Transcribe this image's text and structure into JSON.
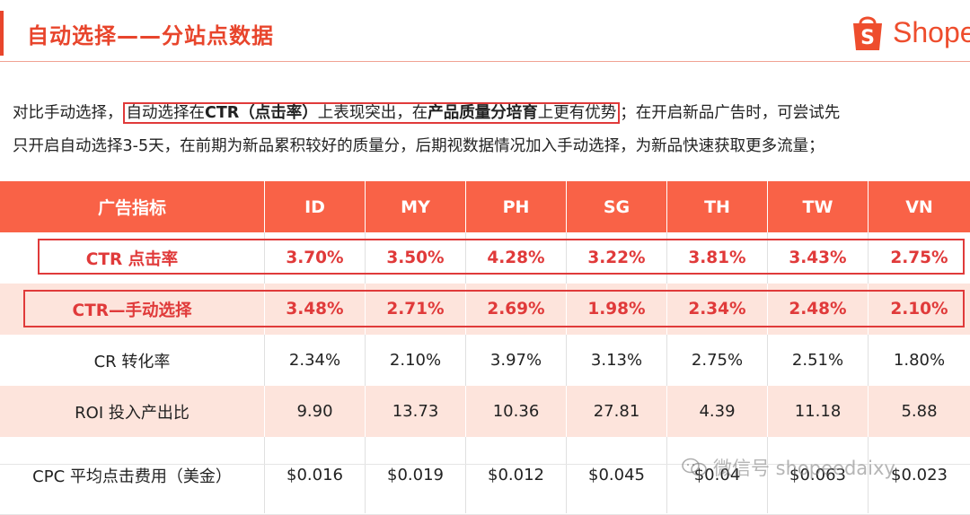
{
  "header": {
    "title": "自动选择——分站点数据",
    "logo_text": "Shope",
    "brand_color": "#ee4d2d"
  },
  "intro": {
    "line1_pre": "对比手动选择，",
    "box_a": "自动选择在",
    "box_b": "CTR（点击率）",
    "box_c": "上表现突出，在",
    "box_d": "产品质量分培育",
    "box_e": "上更有优势",
    "line1_post": "；在开启新品广告时，可尝试先",
    "line2": "只开启自动选择3-5天，在前期为新品累积较好的质量分，后期视数据情况加入手动选择，为新品快速获取更多流量；"
  },
  "table": {
    "header": [
      "广告指标",
      "ID",
      "MY",
      "PH",
      "SG",
      "TH",
      "TW",
      "VN"
    ],
    "rows": [
      [
        "CTR 点击率",
        "3.70%",
        "3.50%",
        "4.28%",
        "3.22%",
        "3.81%",
        "3.43%",
        "2.75%"
      ],
      [
        "CTR—手动选择",
        "3.48%",
        "2.71%",
        "2.69%",
        "1.98%",
        "2.34%",
        "2.48%",
        "2.10%"
      ],
      [
        "CR 转化率",
        "2.34%",
        "2.10%",
        "3.97%",
        "3.13%",
        "2.75%",
        "2.51%",
        "1.80%"
      ],
      [
        "ROI 投入产出比",
        "9.90",
        "13.73",
        "10.36",
        "27.81",
        "4.39",
        "11.18",
        "5.88"
      ],
      [
        "CPC 平均点击费用（美金）",
        "$0.016",
        "$0.019",
        "$0.012",
        "$0.045",
        "$0.04",
        "$0.063",
        "$0.023"
      ]
    ]
  },
  "watermark": "微信号 shopeedaixy",
  "colors": {
    "accent": "#e8452c",
    "header_bg": "#f96247",
    "alt_row": "#fde4dc",
    "highlight_border": "#e03a3a"
  }
}
